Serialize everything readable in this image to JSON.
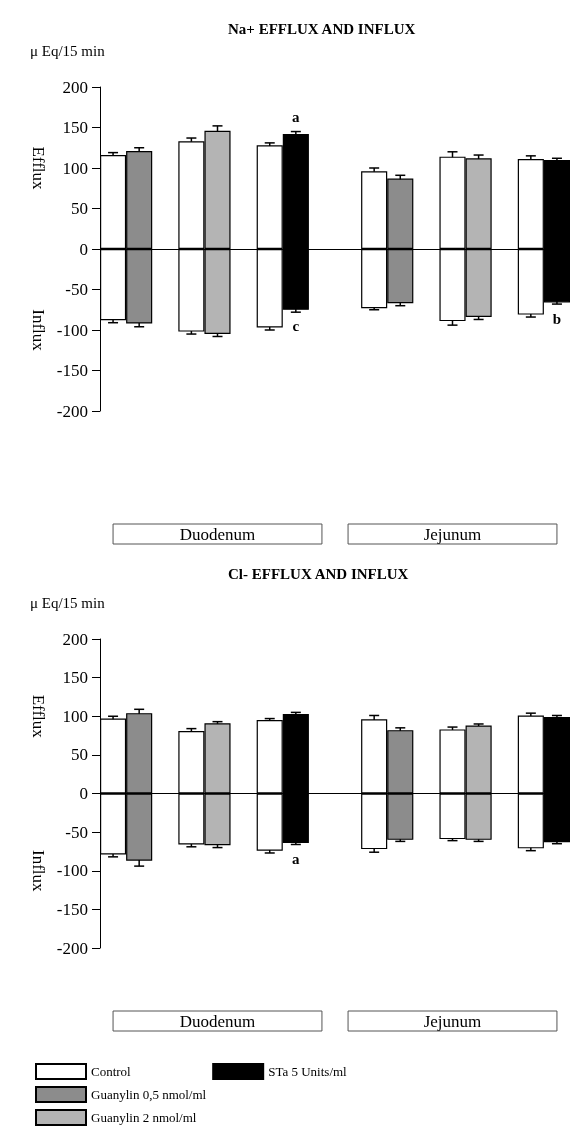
{
  "chart_data": [
    {
      "type": "bar",
      "title": "Na+ EFFLUX AND INFLUX",
      "ylabel": "μ Eq/15 min",
      "categories": [
        null,
        null,
        null,
        null,
        null,
        null,
        null,
        null,
        null,
        null,
        null,
        null,
        null,
        null,
        null,
        null,
        null,
        null
      ],
      "stacked": true,
      "series": [
        {
          "color": "#ffffff",
          "values": [
            116,
            null,
            null,
            133,
            null,
            null,
            128,
            null,
            null,
            null,
            96,
            null,
            null,
            114,
            null,
            null,
            111,
            null
          ],
          "errors": [
            3,
            null,
            null,
            4,
            null,
            null,
            3,
            null,
            null,
            null,
            4,
            null,
            null,
            6,
            null,
            null,
            4,
            null
          ]
        },
        {
          "color": "#ffffff",
          "values": [
            -88,
            null,
            null,
            -102,
            null,
            null,
            -97,
            null,
            null,
            null,
            -73,
            null,
            null,
            -89,
            null,
            null,
            -81,
            null
          ],
          "errors": [
            3,
            null,
            null,
            3,
            null,
            null,
            3,
            null,
            null,
            null,
            2,
            null,
            null,
            5,
            null,
            null,
            3,
            null
          ]
        },
        {
          "color": "#8c8c8c",
          "values": [
            null,
            121,
            null,
            null,
            null,
            null,
            null,
            null,
            null,
            null,
            null,
            87,
            null,
            null,
            null,
            null,
            null,
            null
          ],
          "errors": [
            null,
            4,
            null,
            null,
            null,
            null,
            null,
            null,
            null,
            null,
            null,
            4,
            null,
            null,
            null,
            null,
            null,
            null
          ]
        },
        {
          "color": "#8c8c8c",
          "values": [
            null,
            -92,
            null,
            null,
            null,
            null,
            null,
            null,
            null,
            null,
            null,
            -67,
            null,
            null,
            null,
            null,
            null,
            null
          ],
          "errors": [
            null,
            4,
            null,
            null,
            null,
            null,
            null,
            null,
            null,
            null,
            null,
            3,
            null,
            null,
            null,
            null,
            null,
            null
          ]
        },
        {
          "color": "#b4b4b4",
          "values": [
            null,
            null,
            null,
            null,
            146,
            null,
            null,
            null,
            null,
            null,
            null,
            null,
            null,
            null,
            112,
            null,
            null,
            null
          ],
          "errors": [
            null,
            null,
            null,
            null,
            6,
            null,
            null,
            null,
            null,
            null,
            null,
            null,
            null,
            null,
            4,
            null,
            null,
            null
          ]
        },
        {
          "color": "#b4b4b4",
          "values": [
            null,
            null,
            null,
            null,
            -105,
            null,
            null,
            null,
            null,
            null,
            null,
            null,
            null,
            null,
            -84,
            null,
            null,
            null
          ],
          "errors": [
            null,
            null,
            null,
            null,
            3,
            null,
            null,
            null,
            null,
            null,
            null,
            null,
            null,
            null,
            3,
            null,
            null,
            null
          ]
        },
        {
          "color": "#000000",
          "values": [
            null,
            null,
            null,
            null,
            null,
            null,
            null,
            142,
            null,
            null,
            null,
            null,
            null,
            null,
            null,
            null,
            null,
            110
          ],
          "errors": [
            null,
            null,
            null,
            null,
            null,
            null,
            null,
            3,
            null,
            null,
            null,
            null,
            null,
            null,
            null,
            null,
            null,
            2
          ],
          "value_labels": [
            null,
            null,
            null,
            null,
            null,
            null,
            null,
            "a",
            null,
            null,
            null,
            null,
            null,
            null,
            null,
            null,
            null,
            null
          ]
        },
        {
          "color": "#000000",
          "values": [
            null,
            null,
            null,
            null,
            null,
            null,
            null,
            -75,
            null,
            null,
            null,
            null,
            null,
            null,
            null,
            null,
            null,
            -66
          ],
          "errors": [
            null,
            null,
            null,
            null,
            null,
            null,
            null,
            3,
            null,
            null,
            null,
            null,
            null,
            null,
            null,
            null,
            null,
            2
          ],
          "value_labels": [
            null,
            null,
            null,
            null,
            null,
            null,
            null,
            "c",
            null,
            null,
            null,
            null,
            null,
            null,
            null,
            null,
            null,
            "b"
          ]
        }
      ],
      "ylim": [
        -200,
        200
      ],
      "yticks": [
        -200,
        -150,
        -100,
        -50,
        0,
        50,
        100,
        150,
        200
      ],
      "grid": false,
      "legend": false,
      "tick_labels": "y",
      "ref_lines": [
        {
          "axis": "y",
          "value": 0,
          "color": "#000000"
        }
      ],
      "annotations": [
        "Efflux",
        "Influx",
        "Duodenum",
        "Jejunum"
      ]
    },
    {
      "type": "bar",
      "title": "Cl- EFFLUX AND INFLUX",
      "ylabel": "μ Eq/15 min",
      "categories": [
        null,
        null,
        null,
        null,
        null,
        null,
        null,
        null,
        null,
        null,
        null,
        null,
        null,
        null,
        null,
        null,
        null,
        null
      ],
      "stacked": true,
      "series": [
        {
          "name": "Control",
          "color": "#ffffff",
          "values": [
            97,
            null,
            null,
            81,
            null,
            null,
            95,
            null,
            null,
            null,
            96,
            null,
            null,
            83,
            null,
            null,
            101,
            null
          ],
          "errors": [
            3,
            null,
            null,
            3,
            null,
            null,
            2,
            null,
            null,
            null,
            5,
            null,
            null,
            3,
            null,
            null,
            3,
            null
          ]
        },
        {
          "color": "#ffffff",
          "values": [
            -79,
            null,
            null,
            -66,
            null,
            null,
            -74,
            null,
            null,
            null,
            -72,
            null,
            null,
            -59,
            null,
            null,
            -71,
            null
          ],
          "errors": [
            3,
            null,
            null,
            3,
            null,
            null,
            3,
            null,
            null,
            null,
            4,
            null,
            null,
            2,
            null,
            null,
            3,
            null
          ]
        },
        {
          "name": "Guanylin 0,5 nmol/ml",
          "color": "#8c8c8c",
          "values": [
            null,
            104,
            null,
            null,
            null,
            null,
            null,
            null,
            null,
            null,
            null,
            82,
            null,
            null,
            null,
            null,
            null,
            null
          ],
          "errors": [
            null,
            5,
            null,
            null,
            null,
            null,
            null,
            null,
            null,
            null,
            null,
            3,
            null,
            null,
            null,
            null,
            null,
            null
          ]
        },
        {
          "color": "#8c8c8c",
          "values": [
            null,
            -87,
            null,
            null,
            null,
            null,
            null,
            null,
            null,
            null,
            null,
            -60,
            null,
            null,
            null,
            null,
            null,
            null
          ],
          "errors": [
            null,
            7,
            null,
            null,
            null,
            null,
            null,
            null,
            null,
            null,
            null,
            2,
            null,
            null,
            null,
            null,
            null,
            null
          ]
        },
        {
          "name": "Guanylin 2 nmol/ml",
          "color": "#b4b4b4",
          "values": [
            null,
            null,
            null,
            null,
            91,
            null,
            null,
            null,
            null,
            null,
            null,
            null,
            null,
            null,
            88,
            null,
            null,
            null
          ],
          "errors": [
            null,
            null,
            null,
            null,
            2,
            null,
            null,
            null,
            null,
            null,
            null,
            null,
            null,
            null,
            2,
            null,
            null,
            null
          ]
        },
        {
          "color": "#b4b4b4",
          "values": [
            null,
            null,
            null,
            null,
            -67,
            null,
            null,
            null,
            null,
            null,
            null,
            null,
            null,
            null,
            -60,
            null,
            null,
            null
          ],
          "errors": [
            null,
            null,
            null,
            null,
            3,
            null,
            null,
            null,
            null,
            null,
            null,
            null,
            null,
            null,
            2,
            null,
            null,
            null
          ]
        },
        {
          "name": "STa 5 Units/ml",
          "color": "#000000",
          "values": [
            null,
            null,
            null,
            null,
            null,
            null,
            null,
            103,
            null,
            null,
            null,
            null,
            null,
            null,
            null,
            null,
            null,
            99
          ],
          "errors": [
            null,
            null,
            null,
            null,
            null,
            null,
            null,
            2,
            null,
            null,
            null,
            null,
            null,
            null,
            null,
            null,
            null,
            2
          ]
        },
        {
          "color": "#000000",
          "values": [
            null,
            null,
            null,
            null,
            null,
            null,
            null,
            -64,
            null,
            null,
            null,
            null,
            null,
            null,
            null,
            null,
            null,
            -63
          ],
          "errors": [
            null,
            null,
            null,
            null,
            null,
            null,
            null,
            2,
            null,
            null,
            null,
            null,
            null,
            null,
            null,
            null,
            null,
            2
          ],
          "value_labels": [
            null,
            null,
            null,
            null,
            null,
            null,
            null,
            "a",
            null,
            null,
            null,
            null,
            null,
            null,
            null,
            null,
            null,
            null
          ]
        }
      ],
      "ylim": [
        -200,
        200
      ],
      "yticks": [
        -200,
        -150,
        -100,
        -50,
        0,
        50,
        100,
        150,
        200
      ],
      "grid": false,
      "legend": "bottom left",
      "tick_labels": "y",
      "ref_lines": [
        {
          "axis": "y",
          "value": 0,
          "color": "#000000"
        }
      ],
      "annotations": [
        "Efflux",
        "Influx",
        "Duodenum",
        "Jejunum"
      ]
    }
  ]
}
